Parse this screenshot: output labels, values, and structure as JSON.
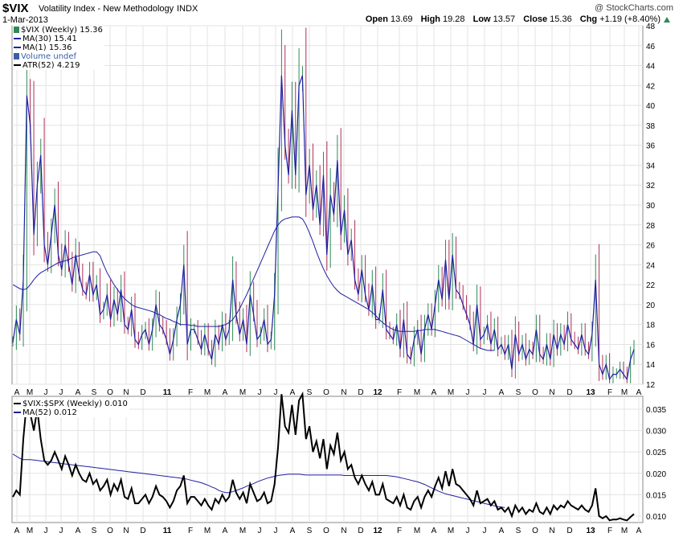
{
  "header": {
    "symbol": "$VIX",
    "name": "Volatility Index - New Methodology",
    "exchange": "INDX",
    "date": "1-Mar-2013",
    "copyright": "@ StockCharts.com",
    "open_label": "Open",
    "open": "13.69",
    "high_label": "High",
    "high": "19.28",
    "low_label": "Low",
    "low": "13.57",
    "close_label": "Close",
    "close": "15.36",
    "chg_label": "Chg",
    "chg": "+1.19 (+8.40%)"
  },
  "legend_top": [
    {
      "text": "$VIX (Weekly) 15.36",
      "color": "#2e8b57",
      "icon": "bar-icon"
    },
    {
      "text": "MA(30) 15.41",
      "color": "#1f1fa3",
      "icon": "line-icon"
    },
    {
      "text": "MA(1) 15.36",
      "color": "#1f1fa3",
      "icon": "line-icon"
    },
    {
      "text": "Volume undef",
      "color": "#3b5ea8",
      "icon": "volume-icon"
    },
    {
      "text": "ATR(52) 4.219",
      "color": "#000000",
      "icon": "line-icon"
    }
  ],
  "legend_bottom": [
    {
      "text": "$VIX:$SPX (Weekly) 0.010",
      "color": "#000000"
    },
    {
      "text": "MA(52) 0.012",
      "color": "#1f1fa3"
    }
  ],
  "colors": {
    "up": "#2e8b57",
    "down": "#b0305a",
    "ma": "#1f1fa3",
    "ratio": "#000000",
    "grid": "#e3e3e3"
  },
  "chart_data": [
    {
      "type": "line",
      "title": "$VIX (Weekly)",
      "ylim": [
        12,
        48
      ],
      "y_ticks": [
        12,
        14,
        16,
        18,
        20,
        22,
        24,
        26,
        28,
        30,
        32,
        34,
        36,
        38,
        40,
        42,
        44,
        46,
        48
      ],
      "x_tick_labels": [
        "A",
        "M",
        "J",
        "J",
        "A",
        "S",
        "O",
        "N",
        "D",
        "11",
        "F",
        "M",
        "A",
        "M",
        "J",
        "J",
        "A",
        "S",
        "O",
        "N",
        "D",
        "12",
        "F",
        "M",
        "A",
        "M",
        "J",
        "J",
        "A",
        "S",
        "O",
        "N",
        "D",
        "13",
        "F",
        "M",
        "A"
      ],
      "bold_ticks": [
        "11",
        "12",
        "13"
      ],
      "series": [
        {
          "name": "MA(1)",
          "values": [
            16.2,
            18.5,
            17.0,
            22.5,
            41.0,
            38.0,
            27.0,
            32.0,
            35.0,
            26.0,
            24.0,
            27.0,
            30.0,
            25.0,
            23.5,
            26.0,
            24.0,
            22.0,
            25.0,
            23.0,
            21.5,
            21.0,
            23.0,
            21.0,
            22.0,
            19.0,
            19.5,
            21.0,
            18.5,
            20.5,
            19.0,
            21.5,
            18.0,
            17.5,
            19.5,
            16.5,
            16.0,
            17.0,
            17.5,
            16.0,
            17.5,
            20.0,
            18.0,
            17.5,
            16.5,
            15.0,
            16.5,
            18.5,
            20.0,
            24.0,
            16.0,
            17.5,
            17.5,
            16.5,
            15.5,
            17.0,
            15.5,
            14.5,
            17.0,
            16.0,
            18.0,
            16.5,
            17.5,
            22.5,
            19.0,
            17.0,
            18.5,
            16.0,
            21.0,
            19.0,
            16.5,
            17.0,
            18.5,
            16.0,
            16.5,
            21.0,
            31.5,
            43.0,
            36.0,
            33.0,
            39.5,
            33.0,
            42.0,
            43.0,
            31.0,
            34.0,
            29.5,
            32.0,
            28.0,
            33.0,
            25.0,
            31.0,
            29.0,
            34.5,
            27.0,
            29.5,
            25.0,
            26.5,
            22.5,
            21.0,
            23.5,
            21.0,
            19.5,
            22.0,
            18.5,
            18.5,
            21.5,
            17.5,
            17.0,
            16.5,
            18.0,
            15.5,
            18.5,
            15.0,
            14.5,
            16.5,
            17.5,
            15.0,
            17.5,
            19.0,
            17.5,
            20.0,
            22.5,
            20.5,
            24.5,
            20.5,
            25.0,
            21.5,
            21.0,
            20.0,
            19.0,
            18.0,
            16.0,
            20.0,
            16.5,
            17.0,
            18.0,
            16.0,
            17.5,
            15.5,
            16.0,
            15.0,
            16.0,
            13.5,
            17.0,
            15.0,
            16.0,
            14.5,
            15.5,
            15.0,
            17.5,
            15.0,
            14.5,
            16.0,
            14.5,
            17.0,
            15.5,
            17.0,
            16.0,
            18.0,
            16.5,
            16.0,
            15.5,
            17.0,
            15.5,
            15.0,
            17.0,
            22.5,
            14.0,
            13.0,
            14.0,
            12.5,
            13.0,
            13.0,
            13.5,
            13.0,
            12.5,
            14.5,
            15.5
          ]
        },
        {
          "name": "MA(30)",
          "values": [
            22.0,
            21.8,
            21.6,
            21.5,
            21.6,
            22.0,
            22.5,
            22.9,
            23.2,
            23.4,
            23.6,
            23.8,
            24.0,
            24.2,
            24.3,
            24.4,
            24.5,
            24.7,
            24.8,
            24.9,
            25.0,
            25.1,
            25.2,
            25.3,
            25.3,
            24.9,
            24.0,
            23.2,
            22.6,
            22.0,
            21.5,
            21.0,
            20.6,
            20.3,
            20.0,
            19.8,
            19.7,
            19.6,
            19.5,
            19.4,
            19.3,
            19.1,
            19.0,
            18.8,
            18.6,
            18.5,
            18.3,
            18.2,
            18.0,
            18.0,
            18.0,
            17.9,
            17.9,
            17.8,
            17.8,
            17.8,
            17.8,
            17.8,
            17.8,
            17.8,
            17.9,
            18.0,
            18.2,
            18.5,
            19.0,
            19.6,
            20.3,
            21.0,
            21.8,
            22.6,
            23.4,
            24.2,
            25.0,
            25.8,
            26.6,
            27.4,
            28.0,
            28.4,
            28.6,
            28.7,
            28.8,
            28.8,
            28.8,
            28.6,
            28.0,
            27.2,
            26.3,
            25.3,
            24.4,
            23.6,
            22.9,
            22.3,
            21.8,
            21.4,
            21.1,
            20.9,
            20.7,
            20.5,
            20.3,
            20.1,
            19.9,
            19.7,
            19.5,
            19.2,
            18.9,
            18.5,
            18.2,
            17.9,
            17.7,
            17.5,
            17.4,
            17.3,
            17.3,
            17.3,
            17.3,
            17.3,
            17.4,
            17.4,
            17.5,
            17.5,
            17.5,
            17.5,
            17.4,
            17.3,
            17.2,
            17.1,
            17.0,
            16.9,
            16.8,
            16.6,
            16.4,
            16.2,
            16.0,
            15.8,
            15.6,
            15.5,
            15.4,
            15.4,
            15.4
          ]
        }
      ]
    },
    {
      "type": "line",
      "title": "$VIX:$SPX (Weekly)",
      "ylim": [
        0.0085,
        0.038
      ],
      "y_ticks": [
        0.01,
        0.015,
        0.02,
        0.025,
        0.03,
        0.035
      ],
      "y_tick_labels": [
        "0.010",
        "0.015",
        "0.020",
        "0.025",
        "0.030",
        "0.035"
      ],
      "x_tick_labels": [
        "A",
        "M",
        "J",
        "J",
        "A",
        "S",
        "O",
        "N",
        "D",
        "11",
        "F",
        "M",
        "A",
        "M",
        "J",
        "J",
        "A",
        "S",
        "O",
        "N",
        "D",
        "12",
        "F",
        "M",
        "A",
        "M",
        "J",
        "J",
        "A",
        "S",
        "O",
        "N",
        "D",
        "13",
        "F",
        "M",
        "A"
      ],
      "series": [
        {
          "name": "$VIX:$SPX",
          "values": [
            0.0145,
            0.016,
            0.015,
            0.028,
            0.037,
            0.034,
            0.03,
            0.035,
            0.028,
            0.023,
            0.022,
            0.023,
            0.025,
            0.023,
            0.021,
            0.024,
            0.022,
            0.0195,
            0.022,
            0.02,
            0.0185,
            0.018,
            0.02,
            0.0175,
            0.0185,
            0.016,
            0.017,
            0.0185,
            0.015,
            0.0175,
            0.016,
            0.0185,
            0.0145,
            0.014,
            0.0165,
            0.013,
            0.013,
            0.014,
            0.015,
            0.013,
            0.0145,
            0.017,
            0.015,
            0.0145,
            0.0135,
            0.012,
            0.0135,
            0.016,
            0.017,
            0.0195,
            0.013,
            0.0145,
            0.0145,
            0.0135,
            0.0125,
            0.014,
            0.0125,
            0.0115,
            0.014,
            0.013,
            0.015,
            0.0135,
            0.0145,
            0.0185,
            0.0155,
            0.014,
            0.0155,
            0.013,
            0.0175,
            0.0155,
            0.0135,
            0.014,
            0.0155,
            0.013,
            0.0135,
            0.0175,
            0.026,
            0.0385,
            0.031,
            0.0295,
            0.036,
            0.029,
            0.037,
            0.0385,
            0.028,
            0.031,
            0.025,
            0.0275,
            0.0235,
            0.028,
            0.021,
            0.0265,
            0.0245,
            0.0295,
            0.023,
            0.025,
            0.021,
            0.022,
            0.019,
            0.0175,
            0.0195,
            0.0175,
            0.016,
            0.018,
            0.015,
            0.015,
            0.0175,
            0.014,
            0.0135,
            0.013,
            0.0145,
            0.0125,
            0.015,
            0.012,
            0.0115,
            0.0135,
            0.0145,
            0.012,
            0.0145,
            0.016,
            0.0145,
            0.017,
            0.019,
            0.0165,
            0.0205,
            0.017,
            0.021,
            0.0175,
            0.017,
            0.016,
            0.015,
            0.014,
            0.0125,
            0.016,
            0.013,
            0.0135,
            0.014,
            0.0125,
            0.0135,
            0.0115,
            0.012,
            0.011,
            0.012,
            0.01,
            0.0125,
            0.011,
            0.012,
            0.0105,
            0.0115,
            0.011,
            0.013,
            0.011,
            0.0105,
            0.012,
            0.0105,
            0.0125,
            0.0115,
            0.0125,
            0.012,
            0.0135,
            0.0125,
            0.012,
            0.0115,
            0.0125,
            0.0115,
            0.011,
            0.0125,
            0.0165,
            0.01,
            0.0095,
            0.01,
            0.009,
            0.0092,
            0.0092,
            0.0095,
            0.0092,
            0.009,
            0.0098,
            0.0105
          ]
        },
        {
          "name": "MA(52)",
          "values": [
            0.0245,
            0.024,
            0.0235,
            0.0232,
            0.0232,
            0.0232,
            0.0231,
            0.023,
            0.0229,
            0.0228,
            0.0227,
            0.0226,
            0.0225,
            0.0224,
            0.0223,
            0.0222,
            0.0221,
            0.022,
            0.0219,
            0.0218,
            0.0217,
            0.0216,
            0.0215,
            0.0214,
            0.0213,
            0.0212,
            0.0211,
            0.021,
            0.0209,
            0.0208,
            0.0207,
            0.0206,
            0.0205,
            0.0204,
            0.0203,
            0.0202,
            0.0201,
            0.02,
            0.0199,
            0.0198,
            0.0197,
            0.0196,
            0.0195,
            0.0194,
            0.0193,
            0.0192,
            0.0191,
            0.019,
            0.0189,
            0.0188,
            0.0186,
            0.0184,
            0.0182,
            0.018,
            0.0178,
            0.0175,
            0.0172,
            0.0168,
            0.0165,
            0.016,
            0.0157,
            0.0155,
            0.0155,
            0.0157,
            0.016,
            0.0163,
            0.0166,
            0.017,
            0.0173,
            0.0176,
            0.018,
            0.0183,
            0.0186,
            0.0189,
            0.0191,
            0.0193,
            0.0195,
            0.0196,
            0.0197,
            0.0198,
            0.0198,
            0.0198,
            0.0198,
            0.0197,
            0.0196,
            0.0196,
            0.0196,
            0.0196,
            0.0196,
            0.0196,
            0.0196,
            0.0196,
            0.0196,
            0.0196,
            0.0196,
            0.0195,
            0.0195,
            0.0195,
            0.0195,
            0.0195,
            0.0195,
            0.0195,
            0.0195,
            0.0195,
            0.0195,
            0.0195,
            0.0195,
            0.0195,
            0.0194,
            0.0193,
            0.0192,
            0.019,
            0.0188,
            0.0186,
            0.0184,
            0.0182,
            0.018,
            0.0177,
            0.0174,
            0.017,
            0.0166,
            0.0162,
            0.0158,
            0.0155,
            0.0152,
            0.015,
            0.0148,
            0.0146,
            0.0144,
            0.0142,
            0.014,
            0.0138,
            0.0136,
            0.0134,
            0.0132,
            0.013,
            0.0128,
            0.0126,
            0.0124,
            0.0122,
            0.0121,
            0.012
          ]
        }
      ]
    }
  ]
}
